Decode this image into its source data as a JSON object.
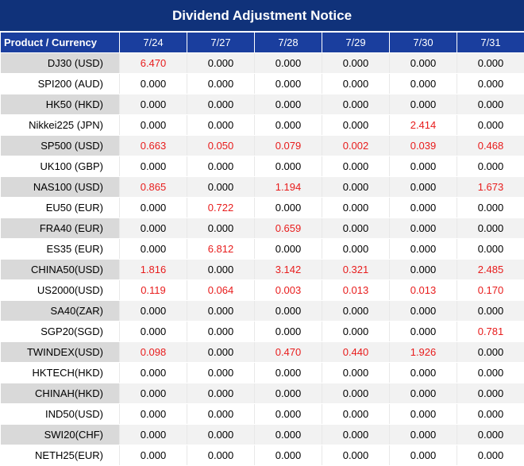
{
  "title": "Dividend Adjustment Notice",
  "colors": {
    "header_bg": "#1a3e9e",
    "title_bg": "#10327a",
    "highlight": "#e81c1c"
  },
  "columns": [
    "Product / Currency",
    "7/24",
    "7/27",
    "7/28",
    "7/29",
    "7/30",
    "7/31"
  ],
  "rows": [
    {
      "product": "DJ30 (USD)",
      "values": [
        "6.470",
        "0.000",
        "0.000",
        "0.000",
        "0.000",
        "0.000"
      ],
      "highlight": [
        true,
        false,
        false,
        false,
        false,
        false
      ]
    },
    {
      "product": "SPI200 (AUD)",
      "values": [
        "0.000",
        "0.000",
        "0.000",
        "0.000",
        "0.000",
        "0.000"
      ],
      "highlight": [
        false,
        false,
        false,
        false,
        false,
        false
      ]
    },
    {
      "product": "HK50 (HKD)",
      "values": [
        "0.000",
        "0.000",
        "0.000",
        "0.000",
        "0.000",
        "0.000"
      ],
      "highlight": [
        false,
        false,
        false,
        false,
        false,
        false
      ]
    },
    {
      "product": "Nikkei225 (JPN)",
      "values": [
        "0.000",
        "0.000",
        "0.000",
        "0.000",
        "2.414",
        "0.000"
      ],
      "highlight": [
        false,
        false,
        false,
        false,
        true,
        false
      ]
    },
    {
      "product": "SP500 (USD)",
      "values": [
        "0.663",
        "0.050",
        "0.079",
        "0.002",
        "0.039",
        "0.468"
      ],
      "highlight": [
        true,
        true,
        true,
        true,
        true,
        true
      ]
    },
    {
      "product": "UK100 (GBP)",
      "values": [
        "0.000",
        "0.000",
        "0.000",
        "0.000",
        "0.000",
        "0.000"
      ],
      "highlight": [
        false,
        false,
        false,
        false,
        false,
        false
      ]
    },
    {
      "product": "NAS100 (USD)",
      "values": [
        "0.865",
        "0.000",
        "1.194",
        "0.000",
        "0.000",
        "1.673"
      ],
      "highlight": [
        true,
        false,
        true,
        false,
        false,
        true
      ]
    },
    {
      "product": "EU50 (EUR)",
      "values": [
        "0.000",
        "0.722",
        "0.000",
        "0.000",
        "0.000",
        "0.000"
      ],
      "highlight": [
        false,
        true,
        false,
        false,
        false,
        false
      ]
    },
    {
      "product": "FRA40 (EUR)",
      "values": [
        "0.000",
        "0.000",
        "0.659",
        "0.000",
        "0.000",
        "0.000"
      ],
      "highlight": [
        false,
        false,
        true,
        false,
        false,
        false
      ]
    },
    {
      "product": "ES35 (EUR)",
      "values": [
        "0.000",
        "6.812",
        "0.000",
        "0.000",
        "0.000",
        "0.000"
      ],
      "highlight": [
        false,
        true,
        false,
        false,
        false,
        false
      ]
    },
    {
      "product": "CHINA50(USD)",
      "values": [
        "1.816",
        "0.000",
        "3.142",
        "0.321",
        "0.000",
        "2.485"
      ],
      "highlight": [
        true,
        false,
        true,
        true,
        false,
        true
      ]
    },
    {
      "product": "US2000(USD)",
      "values": [
        "0.119",
        "0.064",
        "0.003",
        "0.013",
        "0.013",
        "0.170"
      ],
      "highlight": [
        true,
        true,
        true,
        true,
        true,
        true
      ]
    },
    {
      "product": "SA40(ZAR)",
      "values": [
        "0.000",
        "0.000",
        "0.000",
        "0.000",
        "0.000",
        "0.000"
      ],
      "highlight": [
        false,
        false,
        false,
        false,
        false,
        false
      ]
    },
    {
      "product": "SGP20(SGD)",
      "values": [
        "0.000",
        "0.000",
        "0.000",
        "0.000",
        "0.000",
        "0.781"
      ],
      "highlight": [
        false,
        false,
        false,
        false,
        false,
        true
      ]
    },
    {
      "product": "TWINDEX(USD)",
      "values": [
        "0.098",
        "0.000",
        "0.470",
        "0.440",
        "1.926",
        "0.000"
      ],
      "highlight": [
        true,
        false,
        true,
        true,
        true,
        false
      ]
    },
    {
      "product": "HKTECH(HKD)",
      "values": [
        "0.000",
        "0.000",
        "0.000",
        "0.000",
        "0.000",
        "0.000"
      ],
      "highlight": [
        false,
        false,
        false,
        false,
        false,
        false
      ]
    },
    {
      "product": "CHINAH(HKD)",
      "values": [
        "0.000",
        "0.000",
        "0.000",
        "0.000",
        "0.000",
        "0.000"
      ],
      "highlight": [
        false,
        false,
        false,
        false,
        false,
        false
      ]
    },
    {
      "product": "IND50(USD)",
      "values": [
        "0.000",
        "0.000",
        "0.000",
        "0.000",
        "0.000",
        "0.000"
      ],
      "highlight": [
        false,
        false,
        false,
        false,
        false,
        false
      ]
    },
    {
      "product": "SWI20(CHF)",
      "values": [
        "0.000",
        "0.000",
        "0.000",
        "0.000",
        "0.000",
        "0.000"
      ],
      "highlight": [
        false,
        false,
        false,
        false,
        false,
        false
      ]
    },
    {
      "product": "NETH25(EUR)",
      "values": [
        "0.000",
        "0.000",
        "0.000",
        "0.000",
        "0.000",
        "0.000"
      ],
      "highlight": [
        false,
        false,
        false,
        false,
        false,
        false
      ]
    }
  ]
}
